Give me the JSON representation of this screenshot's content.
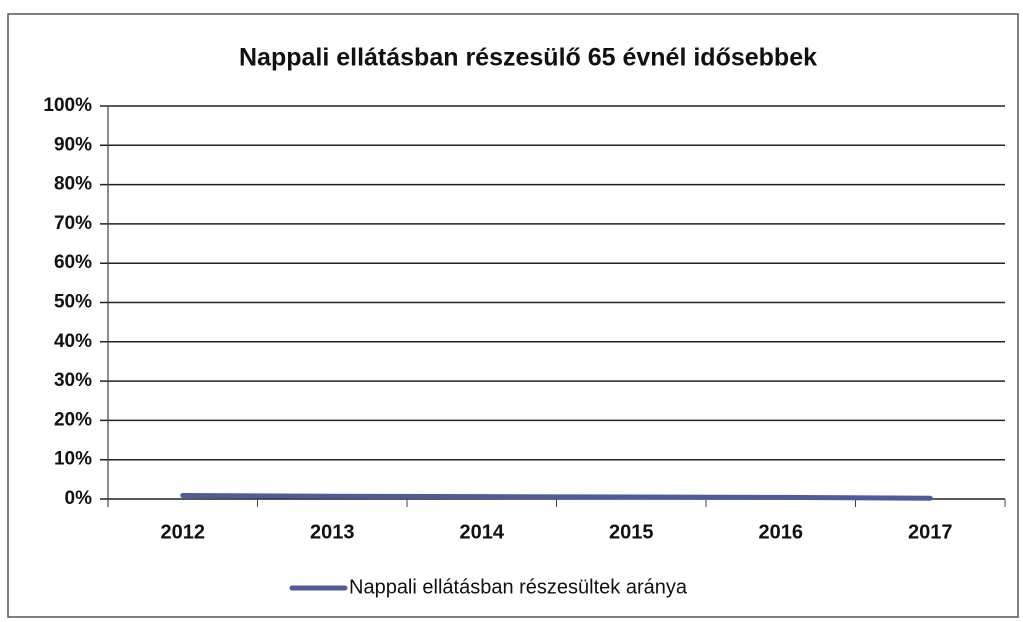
{
  "chart_data": {
    "type": "line",
    "title": "Nappali ellátásban részesülő 65 évnél idősebbek",
    "categories": [
      "2012",
      "2013",
      "2014",
      "2015",
      "2016",
      "2017"
    ],
    "series": [
      {
        "name": "Nappali ellátásban részesültek aránya",
        "color": "#4f5c99",
        "values": [
          0.9,
          0.7,
          0.6,
          0.5,
          0.4,
          0.2
        ]
      }
    ],
    "ylim": [
      0,
      100
    ],
    "yticks": [
      {
        "value": 0,
        "label": "0%"
      },
      {
        "value": 10,
        "label": "10%"
      },
      {
        "value": 20,
        "label": "20%"
      },
      {
        "value": 30,
        "label": "30%"
      },
      {
        "value": 40,
        "label": "40%"
      },
      {
        "value": 50,
        "label": "50%"
      },
      {
        "value": 60,
        "label": "60%"
      },
      {
        "value": 70,
        "label": "70%"
      },
      {
        "value": 80,
        "label": "80%"
      },
      {
        "value": 90,
        "label": "90%"
      },
      {
        "value": 100,
        "label": "100%"
      }
    ],
    "grid": true,
    "legend": "bottom"
  }
}
